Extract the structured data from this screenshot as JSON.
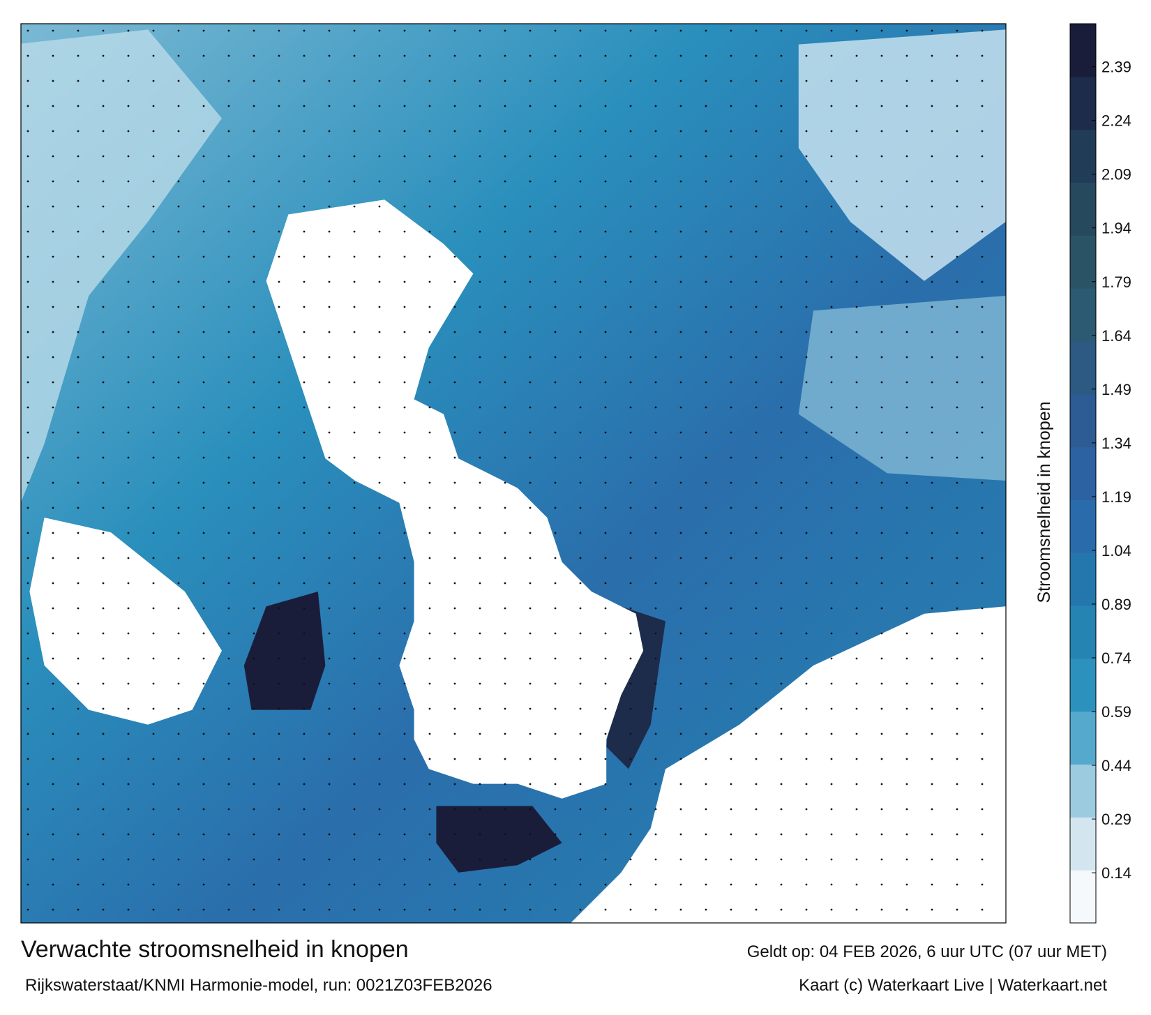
{
  "title": "Verwachte stroomsnelheid in knopen",
  "subtitle": "Rijkswaterstaat/KNMI Harmonie-model, run: 0021Z03FEB2026",
  "valid_time": "Geldt op: 04 FEB 2026, 6 uur UTC (07 uur MET)",
  "credit": "Kaart (c) Waterkaart Live | Waterkaart.net",
  "colorbar": {
    "label": "Stroomsnelheid in knopen",
    "lim": [
      0,
      2.51
    ],
    "ticks": [
      0.14,
      0.29,
      0.44,
      0.59,
      0.74,
      0.89,
      1.04,
      1.19,
      1.34,
      1.49,
      1.64,
      1.79,
      1.94,
      2.09,
      2.24,
      2.39
    ],
    "colors": [
      "#f6f9fb",
      "#d3e6ef",
      "#9ccbe0",
      "#55a9cc",
      "#2c92bd",
      "#2584b2",
      "#2377ac",
      "#2a6cab",
      "#2c62a2",
      "#2d5b94",
      "#2c5a82",
      "#2c5a72",
      "#2a5466",
      "#26495e",
      "#213c57",
      "#1d2c4a",
      "#1a1d3a"
    ]
  }
}
